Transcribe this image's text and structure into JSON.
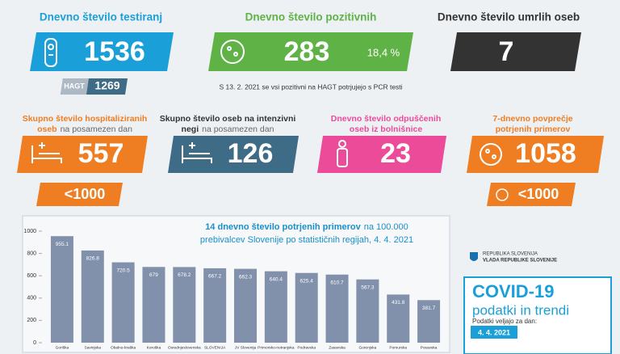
{
  "tests": {
    "title": "Dnevno število testiranj",
    "value": 1536,
    "hagt_label": "HAGT",
    "hagt_value": 1269
  },
  "positive": {
    "title": "Dnevno število pozitivnih",
    "value": 283,
    "share": "18,4 %",
    "note": "S 13. 2. 2021 se vsi pozitivni na HAGT potrjujejo s PCR testi"
  },
  "deaths": {
    "title": "Dnevno število umrlih oseb",
    "value": 7
  },
  "hospitalized": {
    "title": [
      "Skupno število hospitaliziranih",
      "oseb"
    ],
    "suffix": "na posamezen dan",
    "value": 557,
    "threshold": "<1000"
  },
  "icu": {
    "title": [
      "Skupno število oseb na intenzivni",
      "negi"
    ],
    "suffix": "na posamezen dan",
    "value": 126
  },
  "discharged": {
    "title": [
      "Dnevno število odpuščenih",
      "oseb iz bolnišnice"
    ],
    "value": 23
  },
  "average": {
    "title": [
      "7-dnevno povprečje",
      "potrjenih primerov"
    ],
    "value": 1058,
    "threshold": "<1000"
  },
  "chart_data": {
    "type": "bar",
    "title": "14 dnevno število potrjenih primerov",
    "subtitle": [
      "na 100.000",
      "prebivalcev Slovenije po statističnih regijah, 4. 4. 2021"
    ],
    "categories": [
      "Goriška",
      "Savinjska",
      "Obalno-kraška",
      "Koroška",
      "Osrednjeslovenska",
      "SLOVENIJA",
      "JV Slovenija",
      "Primorsko-notranjska",
      "Podravska",
      "Zasavska",
      "Gorenjska",
      "Pomurska",
      "Posavska"
    ],
    "values": [
      955.1,
      826.8,
      720.5,
      679,
      678.2,
      667.2,
      662.3,
      640.4,
      625.4,
      610.7,
      567.3,
      431.8,
      381.7
    ],
    "color": "#8190ab",
    "ylim": [
      0,
      1000
    ],
    "yticks": [
      0,
      200,
      400,
      600,
      800,
      1000
    ],
    "grid": false
  },
  "government": {
    "line1": "REPUBLIKA SLOVENIJA",
    "line2": "VLADA REPUBLIKE SLOVENIJE"
  },
  "footer": {
    "title": "COVID-19",
    "subtitle": "podatki in trendi",
    "date_label": "Podatki veljajo za dan:",
    "date": "4. 4. 2021"
  }
}
